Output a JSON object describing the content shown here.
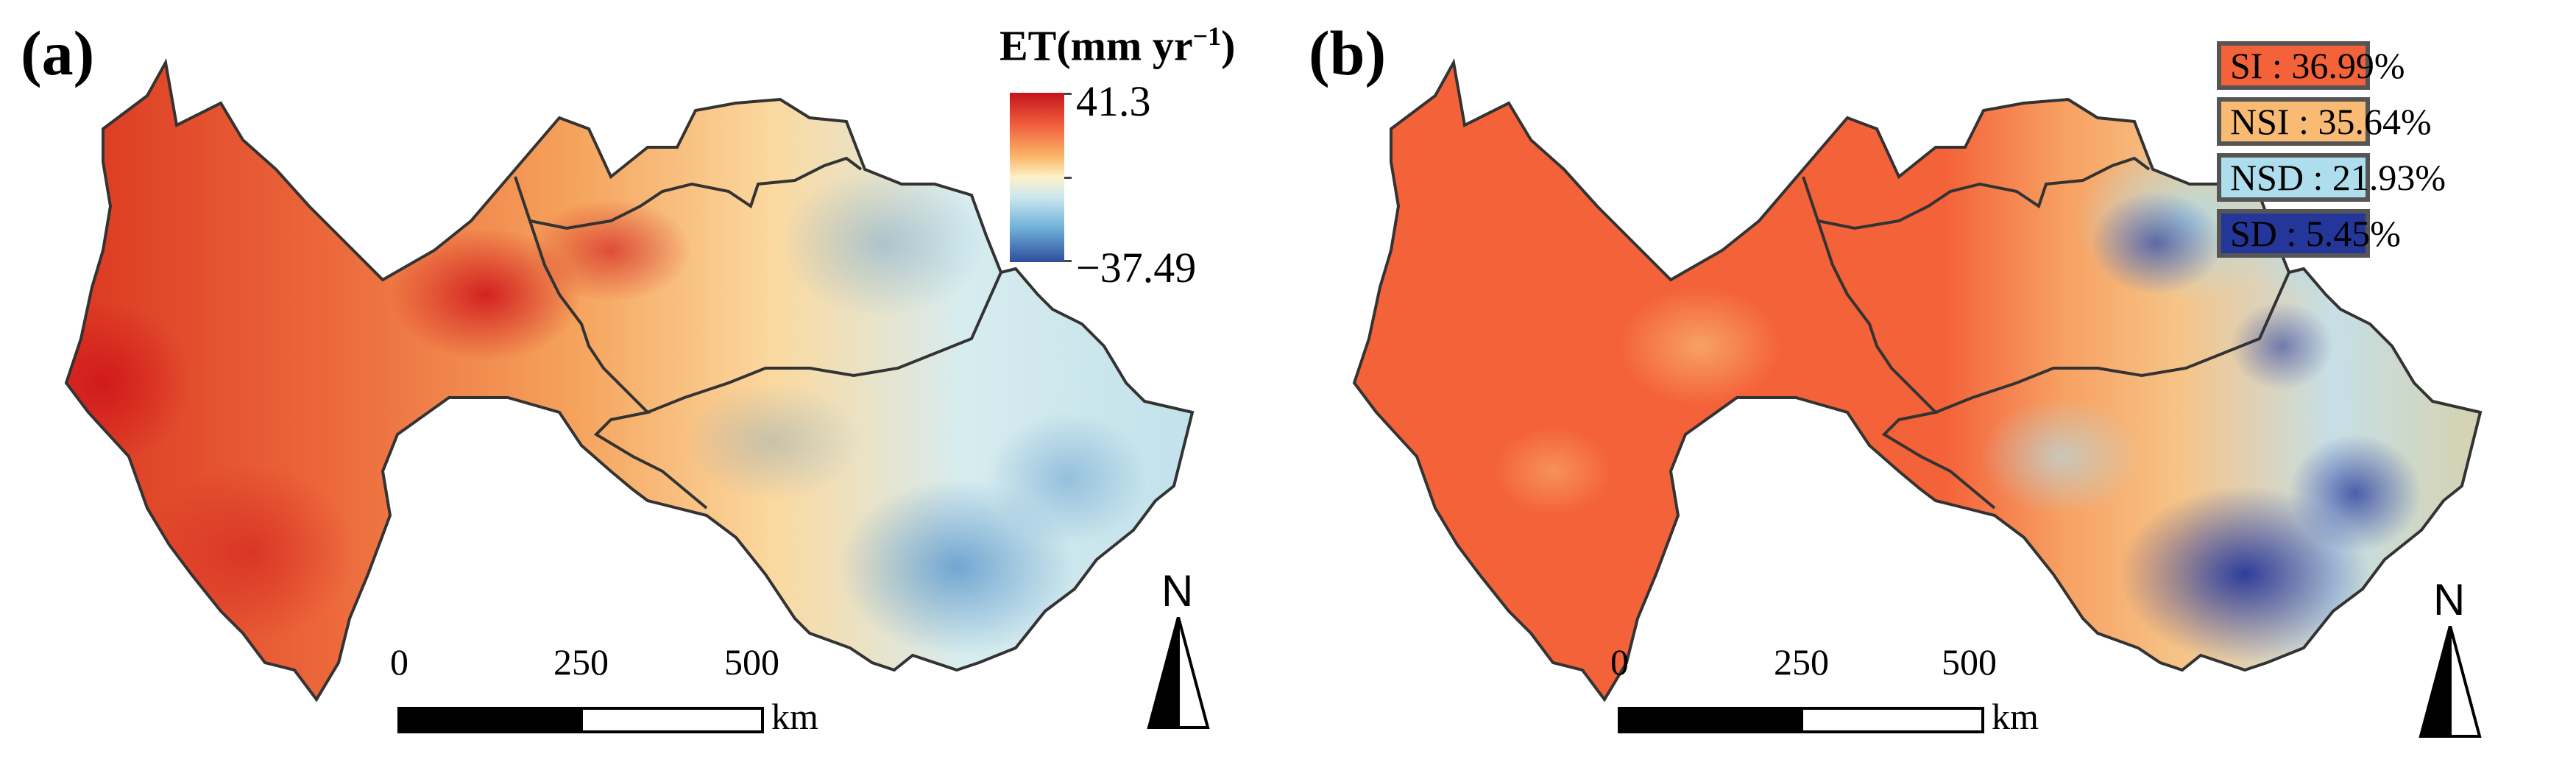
{
  "panel_a": {
    "label": "(a)",
    "colorbar": {
      "title": "ET(mm yr",
      "title_sup": "−1",
      "title_close": ")",
      "max": "41.3",
      "min": "−37.49",
      "colors": [
        "#c4141b",
        "#ef5a3a",
        "#fbb86a",
        "#fdf1c9",
        "#c9e6ef",
        "#6fb1d8",
        "#2e4c9e"
      ]
    },
    "scale_bar": {
      "ticks": [
        "0",
        "250",
        "500"
      ],
      "unit": "km"
    },
    "north_label": "N"
  },
  "panel_b": {
    "label": "(b)",
    "legend": [
      {
        "text": "SI : 36.99%",
        "color": "#f4623a"
      },
      {
        "text": "NSI : 35.64%",
        "color": "#f9bb74"
      },
      {
        "text": "NSD : 21.93%",
        "color": "#aedeed"
      },
      {
        "text": "SD : 5.45%",
        "color": "#25369a"
      }
    ],
    "scale_bar": {
      "ticks": [
        "0",
        "250",
        "500"
      ],
      "unit": "km"
    },
    "north_label": "N"
  }
}
